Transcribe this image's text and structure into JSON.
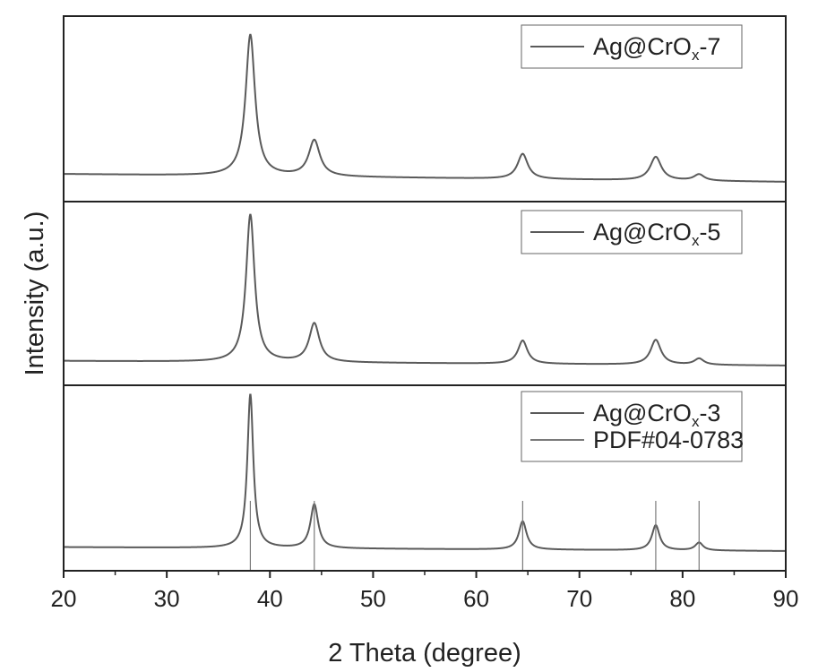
{
  "chart_data": {
    "type": "line",
    "xlabel": "2 Theta (degree)",
    "ylabel": "Intensity (a.u.)",
    "xlim": [
      20,
      90
    ],
    "x_ticks": [
      "20",
      "30",
      "40",
      "50",
      "60",
      "70",
      "80",
      "90"
    ],
    "colors": {
      "line": "#5a5a5a",
      "axis": "#222222",
      "ref": "#7a7a7a"
    },
    "panels": [
      {
        "name": "Ag@CrOx-7",
        "legend": [
          {
            "prefix": "Ag@CrO",
            "sub": "x",
            "suffix": "-7"
          }
        ],
        "baseline_start": 0.05,
        "baseline_end": 0.0,
        "peaks": [
          {
            "pos": 38.1,
            "height": 0.9,
            "width": 0.55
          },
          {
            "pos": 44.3,
            "height": 0.23,
            "width": 0.65
          },
          {
            "pos": 64.5,
            "height": 0.16,
            "width": 0.6
          },
          {
            "pos": 77.4,
            "height": 0.15,
            "width": 0.65
          },
          {
            "pos": 81.6,
            "height": 0.04,
            "width": 0.6
          }
        ]
      },
      {
        "name": "Ag@CrOx-5",
        "legend": [
          {
            "prefix": "Ag@CrO",
            "sub": "x",
            "suffix": "-5"
          }
        ],
        "baseline_start": 0.03,
        "baseline_end": 0.0,
        "peaks": [
          {
            "pos": 38.1,
            "height": 0.95,
            "width": 0.5
          },
          {
            "pos": 44.3,
            "height": 0.25,
            "width": 0.6
          },
          {
            "pos": 64.5,
            "height": 0.15,
            "width": 0.55
          },
          {
            "pos": 77.4,
            "height": 0.16,
            "width": 0.6
          },
          {
            "pos": 81.6,
            "height": 0.04,
            "width": 0.55
          }
        ]
      },
      {
        "name": "Ag@CrOx-3",
        "legend": [
          {
            "prefix": "Ag@CrO",
            "sub": "x",
            "suffix": "-3"
          },
          {
            "prefix": "PDF#04-0783",
            "sub": "",
            "suffix": ""
          }
        ],
        "baseline_start": 0.025,
        "baseline_end": 0.0,
        "peaks": [
          {
            "pos": 38.1,
            "height": 0.98,
            "width": 0.35
          },
          {
            "pos": 44.3,
            "height": 0.28,
            "width": 0.45
          },
          {
            "pos": 64.5,
            "height": 0.18,
            "width": 0.45
          },
          {
            "pos": 77.4,
            "height": 0.16,
            "width": 0.45
          },
          {
            "pos": 81.6,
            "height": 0.05,
            "width": 0.45
          }
        ],
        "reference_lines": [
          38.1,
          44.3,
          64.5,
          77.4,
          81.6
        ]
      }
    ]
  }
}
